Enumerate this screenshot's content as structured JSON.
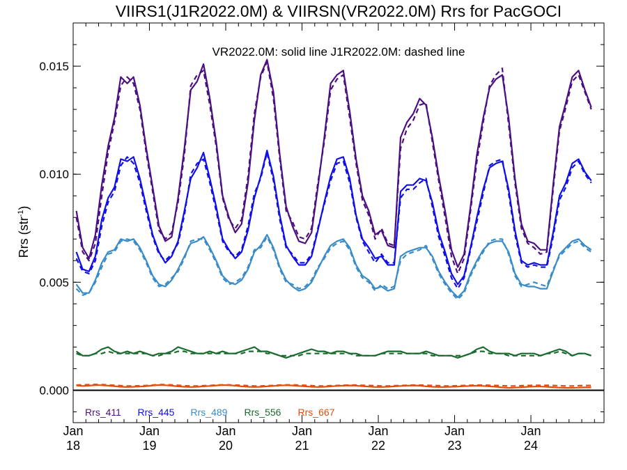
{
  "chart_data": {
    "type": "line",
    "title": "VIIRS1(J1R2022.0M) & VIIRSN(VR2022.0M)  Rrs for PacGOCI",
    "annotation": "VR2022.0M: solid line   J1R2022.0M: dashed line",
    "ylabel": "Rrs (str",
    "ylabel_sup": "-1",
    "ylabel_close": ")",
    "ylim": [
      -0.0015,
      0.017
    ],
    "xlim_months": [
      0,
      83.5
    ],
    "y_ticks": [
      {
        "value": 0.0,
        "label": "0.000"
      },
      {
        "value": 0.005,
        "label": "0.005"
      },
      {
        "value": 0.01,
        "label": "0.010"
      },
      {
        "value": 0.015,
        "label": "0.015"
      }
    ],
    "x_ticks": [
      {
        "month": 0,
        "line1": "Jan",
        "line2": "18"
      },
      {
        "month": 12,
        "line1": "Jan",
        "line2": "19"
      },
      {
        "month": 24,
        "line1": "Jan",
        "line2": "20"
      },
      {
        "month": 36,
        "line1": "Jan",
        "line2": "21"
      },
      {
        "month": 48,
        "line1": "Jan",
        "line2": "22"
      },
      {
        "month": 60,
        "line1": "Jan",
        "line2": "23"
      },
      {
        "month": 72,
        "line1": "Jan",
        "line2": "24"
      }
    ],
    "zero_line": true,
    "series": [
      {
        "name": "Rrs_411",
        "color": "#4b0f82",
        "solid": [
          0.0083,
          0.0066,
          0.0061,
          0.0072,
          0.0095,
          0.0113,
          0.0126,
          0.0145,
          0.0142,
          0.0145,
          0.0132,
          0.0112,
          0.0094,
          0.0076,
          0.0069,
          0.0071,
          0.0089,
          0.0112,
          0.0139,
          0.0143,
          0.0151,
          0.0135,
          0.0115,
          0.009,
          0.008,
          0.0073,
          0.0077,
          0.0096,
          0.0125,
          0.0146,
          0.0153,
          0.0138,
          0.0109,
          0.0085,
          0.0076,
          0.0069,
          0.0068,
          0.0073,
          0.0094,
          0.0117,
          0.0142,
          0.0146,
          0.0148,
          0.0129,
          0.0107,
          0.009,
          0.0083,
          0.0072,
          0.0074,
          0.0067,
          0.0066,
          0.0117,
          0.0124,
          0.0128,
          0.0135,
          0.0132,
          0.0117,
          0.0099,
          0.0083,
          0.0065,
          0.0057,
          0.0063,
          0.0085,
          0.0109,
          0.0126,
          0.014,
          0.0144,
          0.0146,
          0.0126,
          0.0098,
          0.0077,
          0.0069,
          0.0068,
          0.0065,
          0.0065,
          0.0095,
          0.0122,
          0.0133,
          0.0145,
          0.0148,
          0.0139,
          0.0131
        ],
        "dashed": [
          0.008,
          0.0064,
          0.006,
          0.0068,
          0.009,
          0.011,
          0.0124,
          0.0141,
          0.0145,
          0.0142,
          0.013,
          0.011,
          0.0092,
          0.0074,
          0.007,
          0.0073,
          0.0087,
          0.0109,
          0.0141,
          0.0146,
          0.0148,
          0.0132,
          0.0113,
          0.0089,
          0.0079,
          0.0075,
          0.0079,
          0.0099,
          0.0128,
          0.0145,
          0.0152,
          0.0135,
          0.0107,
          0.0083,
          0.0078,
          0.0071,
          0.007,
          0.0075,
          0.0096,
          0.0115,
          0.0139,
          0.0144,
          0.0146,
          0.0126,
          0.0105,
          0.0088,
          0.0081,
          0.007,
          0.0075,
          0.0068,
          0.0067,
          0.0112,
          0.0121,
          0.0125,
          0.0132,
          0.0133,
          0.0115,
          0.0097,
          0.008,
          0.0062,
          0.0054,
          0.0061,
          0.0083,
          0.0106,
          0.0124,
          0.0141,
          0.0146,
          0.0149,
          0.0123,
          0.0096,
          0.0075,
          0.0068,
          0.0066,
          0.0063,
          0.0064,
          0.0093,
          0.012,
          0.0131,
          0.0143,
          0.0146,
          0.0138,
          0.013
        ]
      },
      {
        "name": "Rrs_445",
        "color": "#1010e6",
        "solid": [
          0.0064,
          0.0056,
          0.0055,
          0.0062,
          0.0079,
          0.0089,
          0.0094,
          0.0107,
          0.0106,
          0.0108,
          0.0098,
          0.0085,
          0.0072,
          0.0064,
          0.0059,
          0.0062,
          0.0069,
          0.0083,
          0.0098,
          0.0103,
          0.011,
          0.0098,
          0.0085,
          0.007,
          0.0065,
          0.0061,
          0.0064,
          0.0074,
          0.0089,
          0.0099,
          0.0111,
          0.0099,
          0.0081,
          0.0067,
          0.0062,
          0.0058,
          0.0058,
          0.0062,
          0.0074,
          0.0087,
          0.0099,
          0.0107,
          0.0108,
          0.0098,
          0.0081,
          0.007,
          0.0066,
          0.0061,
          0.0062,
          0.0058,
          0.0058,
          0.0092,
          0.0095,
          0.0095,
          0.0098,
          0.0097,
          0.0087,
          0.0073,
          0.0064,
          0.0054,
          0.0049,
          0.0053,
          0.0066,
          0.008,
          0.0093,
          0.0103,
          0.0105,
          0.0106,
          0.0093,
          0.0074,
          0.006,
          0.0058,
          0.0059,
          0.0058,
          0.0058,
          0.0073,
          0.009,
          0.0096,
          0.0105,
          0.0107,
          0.0101,
          0.0097
        ],
        "dashed": [
          0.0061,
          0.0055,
          0.0054,
          0.006,
          0.0076,
          0.0087,
          0.0092,
          0.0104,
          0.0108,
          0.0105,
          0.0096,
          0.0083,
          0.0071,
          0.0063,
          0.006,
          0.0063,
          0.0068,
          0.0081,
          0.01,
          0.0105,
          0.0107,
          0.0096,
          0.0083,
          0.0069,
          0.0064,
          0.0062,
          0.0065,
          0.0076,
          0.0091,
          0.0098,
          0.011,
          0.0097,
          0.0079,
          0.0066,
          0.0063,
          0.0059,
          0.0059,
          0.0063,
          0.0075,
          0.0086,
          0.0097,
          0.0105,
          0.0106,
          0.0096,
          0.008,
          0.0069,
          0.0064,
          0.0059,
          0.0063,
          0.0059,
          0.0059,
          0.0089,
          0.0093,
          0.0093,
          0.0096,
          0.0098,
          0.0085,
          0.0071,
          0.0062,
          0.0052,
          0.0047,
          0.0052,
          0.0065,
          0.0078,
          0.0091,
          0.0104,
          0.0106,
          0.0107,
          0.0091,
          0.0072,
          0.0059,
          0.0057,
          0.0058,
          0.0057,
          0.0057,
          0.0071,
          0.0088,
          0.0094,
          0.0103,
          0.0106,
          0.01,
          0.0096
        ]
      },
      {
        "name": "Rrs_489",
        "color": "#3a8cc8",
        "solid": [
          0.0049,
          0.0045,
          0.0045,
          0.0051,
          0.0059,
          0.0064,
          0.0065,
          0.007,
          0.0069,
          0.007,
          0.0066,
          0.006,
          0.0053,
          0.0049,
          0.0048,
          0.0051,
          0.0056,
          0.0062,
          0.0068,
          0.0069,
          0.0071,
          0.0066,
          0.006,
          0.0053,
          0.005,
          0.0049,
          0.0051,
          0.0056,
          0.0064,
          0.0067,
          0.0072,
          0.0066,
          0.0057,
          0.0051,
          0.0048,
          0.0046,
          0.0047,
          0.005,
          0.0056,
          0.0062,
          0.0067,
          0.0069,
          0.007,
          0.0066,
          0.0058,
          0.0053,
          0.0051,
          0.0047,
          0.0048,
          0.0046,
          0.0047,
          0.0062,
          0.0064,
          0.0065,
          0.0066,
          0.0066,
          0.0062,
          0.0055,
          0.005,
          0.0046,
          0.0043,
          0.0046,
          0.0054,
          0.006,
          0.0065,
          0.0068,
          0.0069,
          0.0069,
          0.0064,
          0.0054,
          0.0049,
          0.0048,
          0.0048,
          0.0047,
          0.0047,
          0.0055,
          0.0063,
          0.0066,
          0.0069,
          0.007,
          0.0067,
          0.0065
        ],
        "dashed": [
          0.0047,
          0.0044,
          0.0045,
          0.005,
          0.0057,
          0.0063,
          0.0064,
          0.0069,
          0.007,
          0.0069,
          0.0065,
          0.0059,
          0.0052,
          0.0048,
          0.0049,
          0.0052,
          0.0055,
          0.0061,
          0.0069,
          0.007,
          0.007,
          0.0065,
          0.0059,
          0.0052,
          0.0049,
          0.005,
          0.0052,
          0.0057,
          0.0065,
          0.0066,
          0.0071,
          0.0065,
          0.0056,
          0.005,
          0.0049,
          0.0047,
          0.0048,
          0.0051,
          0.0057,
          0.0061,
          0.0066,
          0.0068,
          0.0069,
          0.0065,
          0.0057,
          0.0052,
          0.005,
          0.0046,
          0.0049,
          0.0047,
          0.0048,
          0.006,
          0.0063,
          0.0064,
          0.0065,
          0.0067,
          0.0061,
          0.0054,
          0.0049,
          0.0045,
          0.0042,
          0.0045,
          0.0053,
          0.0059,
          0.0064,
          0.0069,
          0.007,
          0.007,
          0.0063,
          0.0053,
          0.0048,
          0.0049,
          0.005,
          0.0049,
          0.0048,
          0.0056,
          0.0062,
          0.0065,
          0.0068,
          0.0069,
          0.0066,
          0.0064
        ]
      },
      {
        "name": "Rrs_556",
        "color": "#1a6b2e",
        "solid": [
          0.0018,
          0.0016,
          0.0016,
          0.0017,
          0.0019,
          0.002,
          0.0018,
          0.0017,
          0.0018,
          0.0017,
          0.0018,
          0.0017,
          0.0016,
          0.0017,
          0.0017,
          0.0018,
          0.002,
          0.0019,
          0.0018,
          0.0017,
          0.0017,
          0.0018,
          0.0017,
          0.0018,
          0.0017,
          0.0017,
          0.0018,
          0.0019,
          0.002,
          0.0018,
          0.0018,
          0.0017,
          0.0016,
          0.0015,
          0.0016,
          0.0017,
          0.0018,
          0.0019,
          0.0018,
          0.0018,
          0.0017,
          0.0018,
          0.0018,
          0.0017,
          0.0017,
          0.0016,
          0.0016,
          0.0016,
          0.0017,
          0.0018,
          0.0018,
          0.0018,
          0.0017,
          0.0017,
          0.0017,
          0.0018,
          0.0017,
          0.0016,
          0.0016,
          0.0016,
          0.0015,
          0.0016,
          0.0017,
          0.0019,
          0.002,
          0.0018,
          0.0017,
          0.0017,
          0.0017,
          0.0016,
          0.0017,
          0.0017,
          0.0017,
          0.0016,
          0.0017,
          0.0018,
          0.0019,
          0.0018,
          0.0016,
          0.0017,
          0.0017,
          0.0016
        ],
        "dashed": [
          0.0017,
          0.0016,
          0.0016,
          0.0017,
          0.0017,
          0.0018,
          0.0017,
          0.0017,
          0.0017,
          0.0017,
          0.0017,
          0.0017,
          0.0016,
          0.0016,
          0.0017,
          0.0017,
          0.0018,
          0.0018,
          0.0017,
          0.0017,
          0.0017,
          0.0017,
          0.0017,
          0.0017,
          0.0017,
          0.0017,
          0.0017,
          0.0018,
          0.0018,
          0.0018,
          0.0017,
          0.0017,
          0.0016,
          0.0016,
          0.0016,
          0.0016,
          0.0017,
          0.0017,
          0.0017,
          0.0017,
          0.0017,
          0.0017,
          0.0017,
          0.0017,
          0.0016,
          0.0016,
          0.0016,
          0.0016,
          0.0017,
          0.0017,
          0.0017,
          0.0017,
          0.0017,
          0.0017,
          0.0017,
          0.0017,
          0.0016,
          0.0016,
          0.0016,
          0.0016,
          0.0016,
          0.0016,
          0.0017,
          0.0018,
          0.0018,
          0.0017,
          0.0017,
          0.0017,
          0.0016,
          0.0016,
          0.0016,
          0.0016,
          0.0016,
          0.0016,
          0.0017,
          0.0017,
          0.0018,
          0.0017,
          0.0016,
          0.0017,
          0.0017,
          0.0016
        ]
      },
      {
        "name": "Rrs_667",
        "color": "#e04e10",
        "solid": [
          0.00022,
          0.0002,
          0.00021,
          0.00024,
          0.00023,
          0.00021,
          0.00019,
          0.00016,
          0.00015,
          0.00016,
          0.00017,
          0.00019,
          0.00022,
          0.00024,
          0.00023,
          0.00021,
          0.00018,
          0.00016,
          0.00015,
          0.00016,
          0.00018,
          0.0002,
          0.00022,
          0.00024,
          0.00023,
          0.00021,
          0.00018,
          0.00016,
          0.00015,
          0.00016,
          0.00018,
          0.0002,
          0.00022,
          0.00023,
          0.00022,
          0.0002,
          0.00018,
          0.00016,
          0.00015,
          0.00016,
          0.00018,
          0.0002,
          0.00021,
          0.00022,
          0.00021,
          0.00019,
          0.00017,
          0.00015,
          0.00015,
          0.00016,
          0.00018,
          0.0002,
          0.00021,
          0.00022,
          0.00021,
          0.00018,
          0.00016,
          0.00015,
          0.00015,
          0.00016,
          0.00017,
          0.00019,
          0.0002,
          0.00021,
          0.0002,
          0.00018,
          0.00016,
          0.00013,
          0.00011,
          0.00012,
          0.00014,
          0.00016,
          0.00017,
          0.00017,
          0.00016,
          0.00014,
          0.00012,
          0.00011,
          0.00011,
          0.00012,
          0.00013,
          0.00013
        ],
        "dashed": [
          0.00024,
          0.00025,
          0.00026,
          0.00027,
          0.00026,
          0.00025,
          0.00023,
          0.00021,
          0.0002,
          0.0002,
          0.00021,
          0.00022,
          0.00024,
          0.00026,
          0.00026,
          0.00025,
          0.00023,
          0.00021,
          0.0002,
          0.0002,
          0.00021,
          0.00022,
          0.00024,
          0.00025,
          0.00025,
          0.00024,
          0.00023,
          0.00021,
          0.0002,
          0.0002,
          0.00021,
          0.00022,
          0.00024,
          0.00025,
          0.00025,
          0.00024,
          0.00023,
          0.00021,
          0.0002,
          0.0002,
          0.00021,
          0.00022,
          0.00023,
          0.00024,
          0.00024,
          0.00023,
          0.00022,
          0.00021,
          0.0002,
          0.0002,
          0.00021,
          0.00022,
          0.00023,
          0.00024,
          0.00024,
          0.00023,
          0.00022,
          0.00021,
          0.0002,
          0.0002,
          0.00021,
          0.00022,
          0.00023,
          0.00024,
          0.00024,
          0.00023,
          0.00022,
          0.00021,
          0.0002,
          0.0002,
          0.00021,
          0.00022,
          0.00023,
          0.00023,
          0.00023,
          0.00022,
          0.00021,
          0.0002,
          0.0002,
          0.00021,
          0.00022,
          0.00022
        ]
      }
    ]
  }
}
